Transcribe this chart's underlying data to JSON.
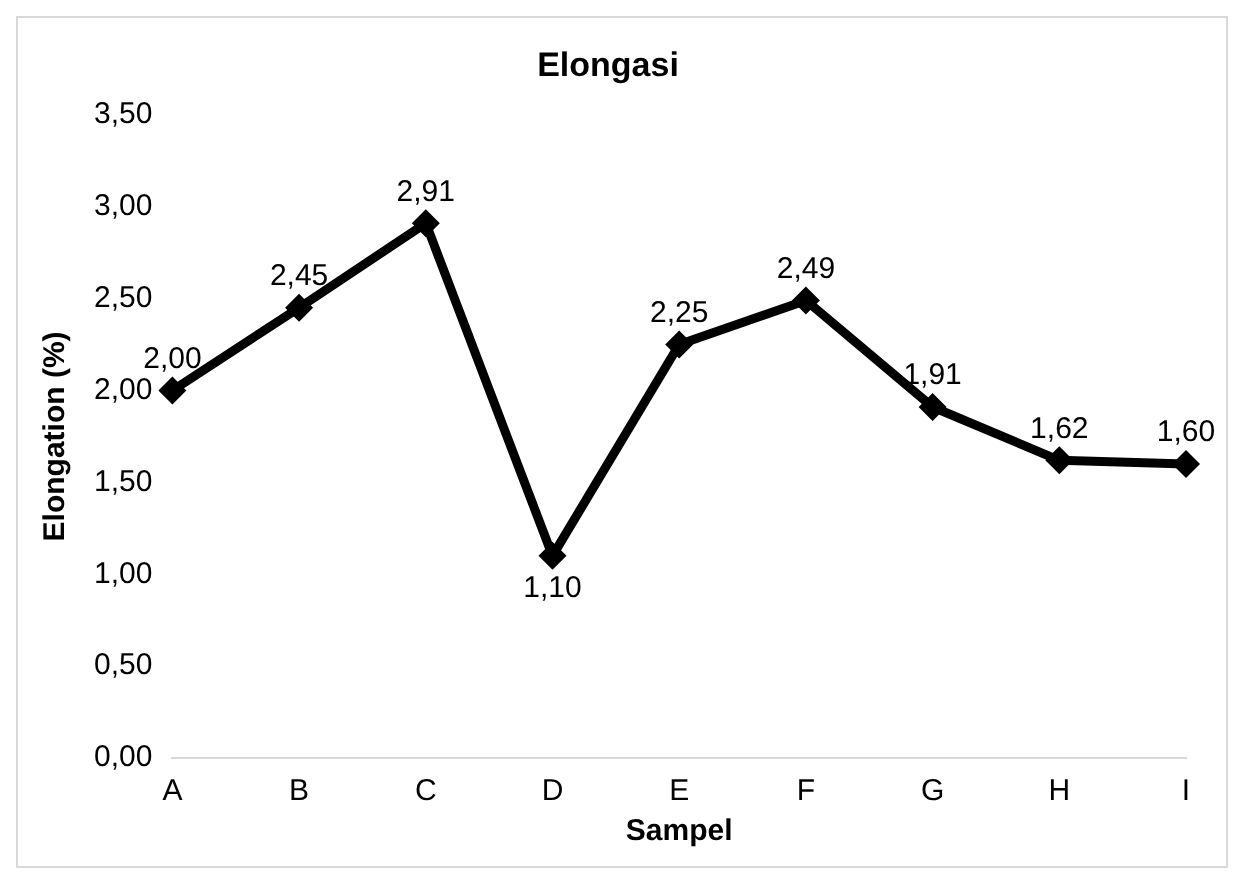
{
  "chart_data": {
    "type": "line",
    "title": "Elongasi",
    "xlabel": "Sampel",
    "ylabel": "Elongation (%)",
    "categories": [
      "A",
      "B",
      "C",
      "D",
      "E",
      "F",
      "G",
      "H",
      "I"
    ],
    "series": [
      {
        "color": "#000000",
        "values": [
          2.0,
          2.45,
          2.91,
          1.1,
          2.25,
          2.49,
          1.91,
          1.62,
          1.6
        ],
        "value_labels": [
          "2,00",
          "2,45",
          "2,91",
          "1,10",
          "2,25",
          "2,49",
          "1,91",
          "1,62",
          "1,60"
        ]
      }
    ],
    "ylim": [
      0,
      3.5
    ],
    "yticks": [
      {
        "value": 0,
        "label": "0,00"
      },
      {
        "value": 0.5,
        "label": "0,50"
      },
      {
        "value": 1,
        "label": "1,00"
      },
      {
        "value": 1.5,
        "label": "1,50"
      },
      {
        "value": 2,
        "label": "2,00"
      },
      {
        "value": 2.5,
        "label": "2,50"
      },
      {
        "value": 3,
        "label": "3,00"
      },
      {
        "value": 3.5,
        "label": "3,50"
      }
    ],
    "grid": false,
    "legend": false,
    "marker": "diamond",
    "line_style": "solid"
  }
}
